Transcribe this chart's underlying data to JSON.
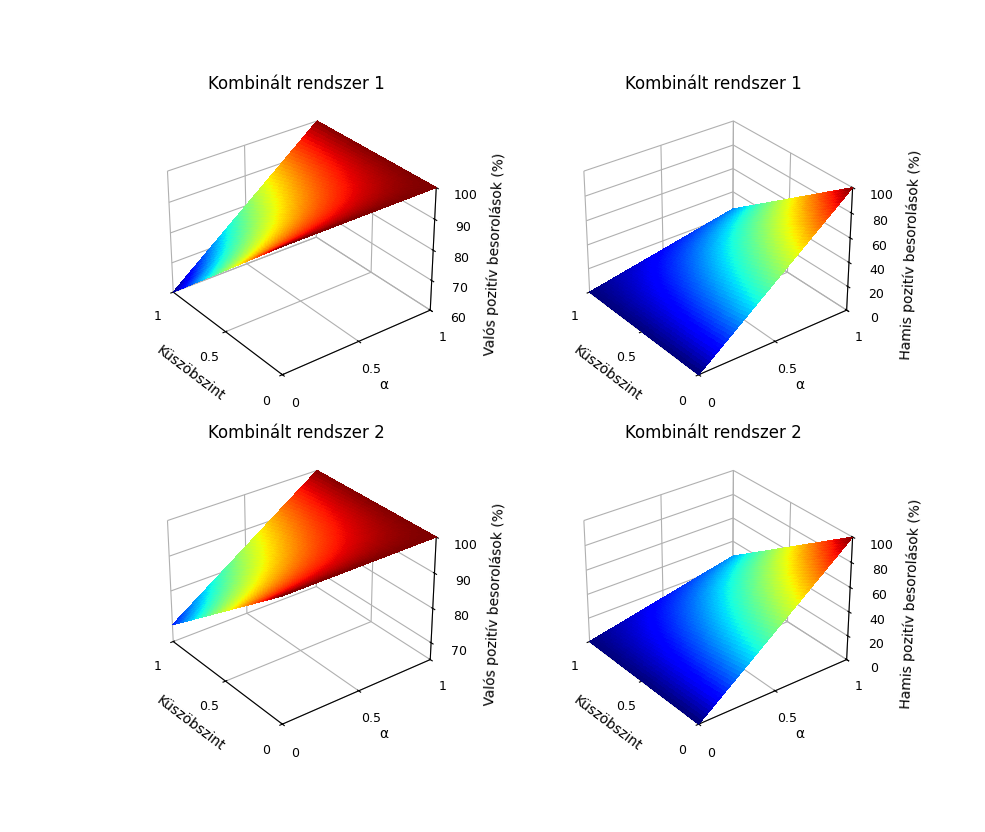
{
  "titles": [
    "Kombinált rendszer 1",
    "Kombinált rendszer 1",
    "Kombinált rendszer 2",
    "Kombinált rendszer 2"
  ],
  "zlabels": [
    "Valós pozitív besorolások (%)",
    "Hamis pozitív besorolások (%)",
    "Valós pozitív besorolások (%)",
    "Hamis pozitív besorolások (%)"
  ],
  "kuszob_label": "Küszöbszint",
  "alpha_label": "α",
  "n_points": 60,
  "background_color": "#ffffff",
  "title_fontsize": 12,
  "label_fontsize": 10,
  "tick_fontsize": 9,
  "configs": [
    {
      "zlim": [
        60,
        100
      ],
      "zticks": [
        60,
        70,
        80,
        90,
        100
      ],
      "type": "tp1"
    },
    {
      "zlim": [
        0,
        100
      ],
      "zticks": [
        0,
        20,
        40,
        60,
        80,
        100
      ],
      "type": "fp1"
    },
    {
      "zlim": [
        65,
        100
      ],
      "zticks": [
        70,
        80,
        90,
        100
      ],
      "type": "tp2"
    },
    {
      "zlim": [
        0,
        100
      ],
      "zticks": [
        0,
        20,
        40,
        60,
        80,
        100
      ],
      "type": "fp2"
    }
  ]
}
